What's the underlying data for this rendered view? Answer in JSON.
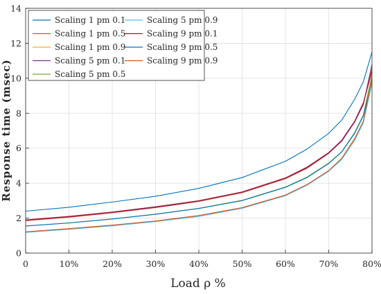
{
  "chart_data": {
    "type": "line",
    "title": "",
    "xlabel": "Load ρ %",
    "ylabel": "Response time (msec)",
    "xlim": [
      0,
      80
    ],
    "ylim": [
      0,
      14
    ],
    "grid": true,
    "legend_position": "top-left",
    "x_ticks": [
      0,
      10,
      20,
      30,
      40,
      50,
      60,
      70,
      80
    ],
    "x_tick_labels": [
      "0",
      "10%",
      "20%",
      "30%",
      "40%",
      "50%",
      "60%",
      "70%",
      "80%"
    ],
    "y_ticks": [
      0,
      2,
      4,
      6,
      8,
      10,
      12,
      14
    ],
    "y_tick_labels": [
      "0",
      "2",
      "4",
      "6",
      "8",
      "10",
      "12",
      "14"
    ],
    "x": [
      0,
      10,
      20,
      30,
      40,
      50,
      60,
      65,
      70,
      73,
      76,
      78,
      80
    ],
    "series": [
      {
        "name": "Scaling 1 pm 0.1",
        "color": "#0072BD",
        "values": [
          2.4,
          2.62,
          2.92,
          3.25,
          3.7,
          4.32,
          5.25,
          5.95,
          6.85,
          7.6,
          8.8,
          9.8,
          11.5
        ]
      },
      {
        "name": "Scaling 1 pm 0.5",
        "color": "#D95319",
        "values": [
          1.85,
          2.05,
          2.3,
          2.6,
          2.95,
          3.45,
          4.25,
          4.85,
          5.7,
          6.4,
          7.5,
          8.5,
          10.6
        ]
      },
      {
        "name": "Scaling 1 pm 0.9",
        "color": "#EDB120",
        "values": [
          1.2,
          1.38,
          1.58,
          1.82,
          2.13,
          2.58,
          3.3,
          3.9,
          4.7,
          5.4,
          6.5,
          7.5,
          9.8
        ]
      },
      {
        "name": "Scaling 5 pm 0.1",
        "color": "#7E2F8E",
        "values": [
          1.88,
          2.08,
          2.33,
          2.62,
          2.98,
          3.48,
          4.28,
          4.88,
          5.72,
          6.4,
          7.5,
          8.5,
          10.8
        ]
      },
      {
        "name": "Scaling 5 pm 0.5",
        "color": "#77AC30",
        "values": [
          1.55,
          1.73,
          1.95,
          2.23,
          2.56,
          3.02,
          3.78,
          4.35,
          5.15,
          5.8,
          6.9,
          7.9,
          10.2
        ]
      },
      {
        "name": "Scaling 5 pm 0.9",
        "color": "#4DBEEE",
        "values": [
          1.18,
          1.36,
          1.56,
          1.8,
          2.1,
          2.56,
          3.28,
          3.88,
          4.68,
          5.35,
          6.45,
          7.45,
          9.7
        ]
      },
      {
        "name": "Scaling 9 pm 0.1",
        "color": "#A2142F",
        "values": [
          1.9,
          2.1,
          2.35,
          2.65,
          3.0,
          3.5,
          4.3,
          4.92,
          5.75,
          6.45,
          7.55,
          8.6,
          10.4
        ]
      },
      {
        "name": "Scaling 9 pm 0.5",
        "color": "#0072BD",
        "values": [
          1.55,
          1.72,
          1.95,
          2.22,
          2.55,
          3.0,
          3.76,
          4.32,
          5.12,
          5.78,
          6.85,
          7.85,
          9.9
        ]
      },
      {
        "name": "Scaling 9 pm 0.9",
        "color": "#D95319",
        "values": [
          1.22,
          1.4,
          1.6,
          1.84,
          2.15,
          2.6,
          3.32,
          3.92,
          4.72,
          5.42,
          6.55,
          7.55,
          10.0
        ]
      }
    ]
  }
}
